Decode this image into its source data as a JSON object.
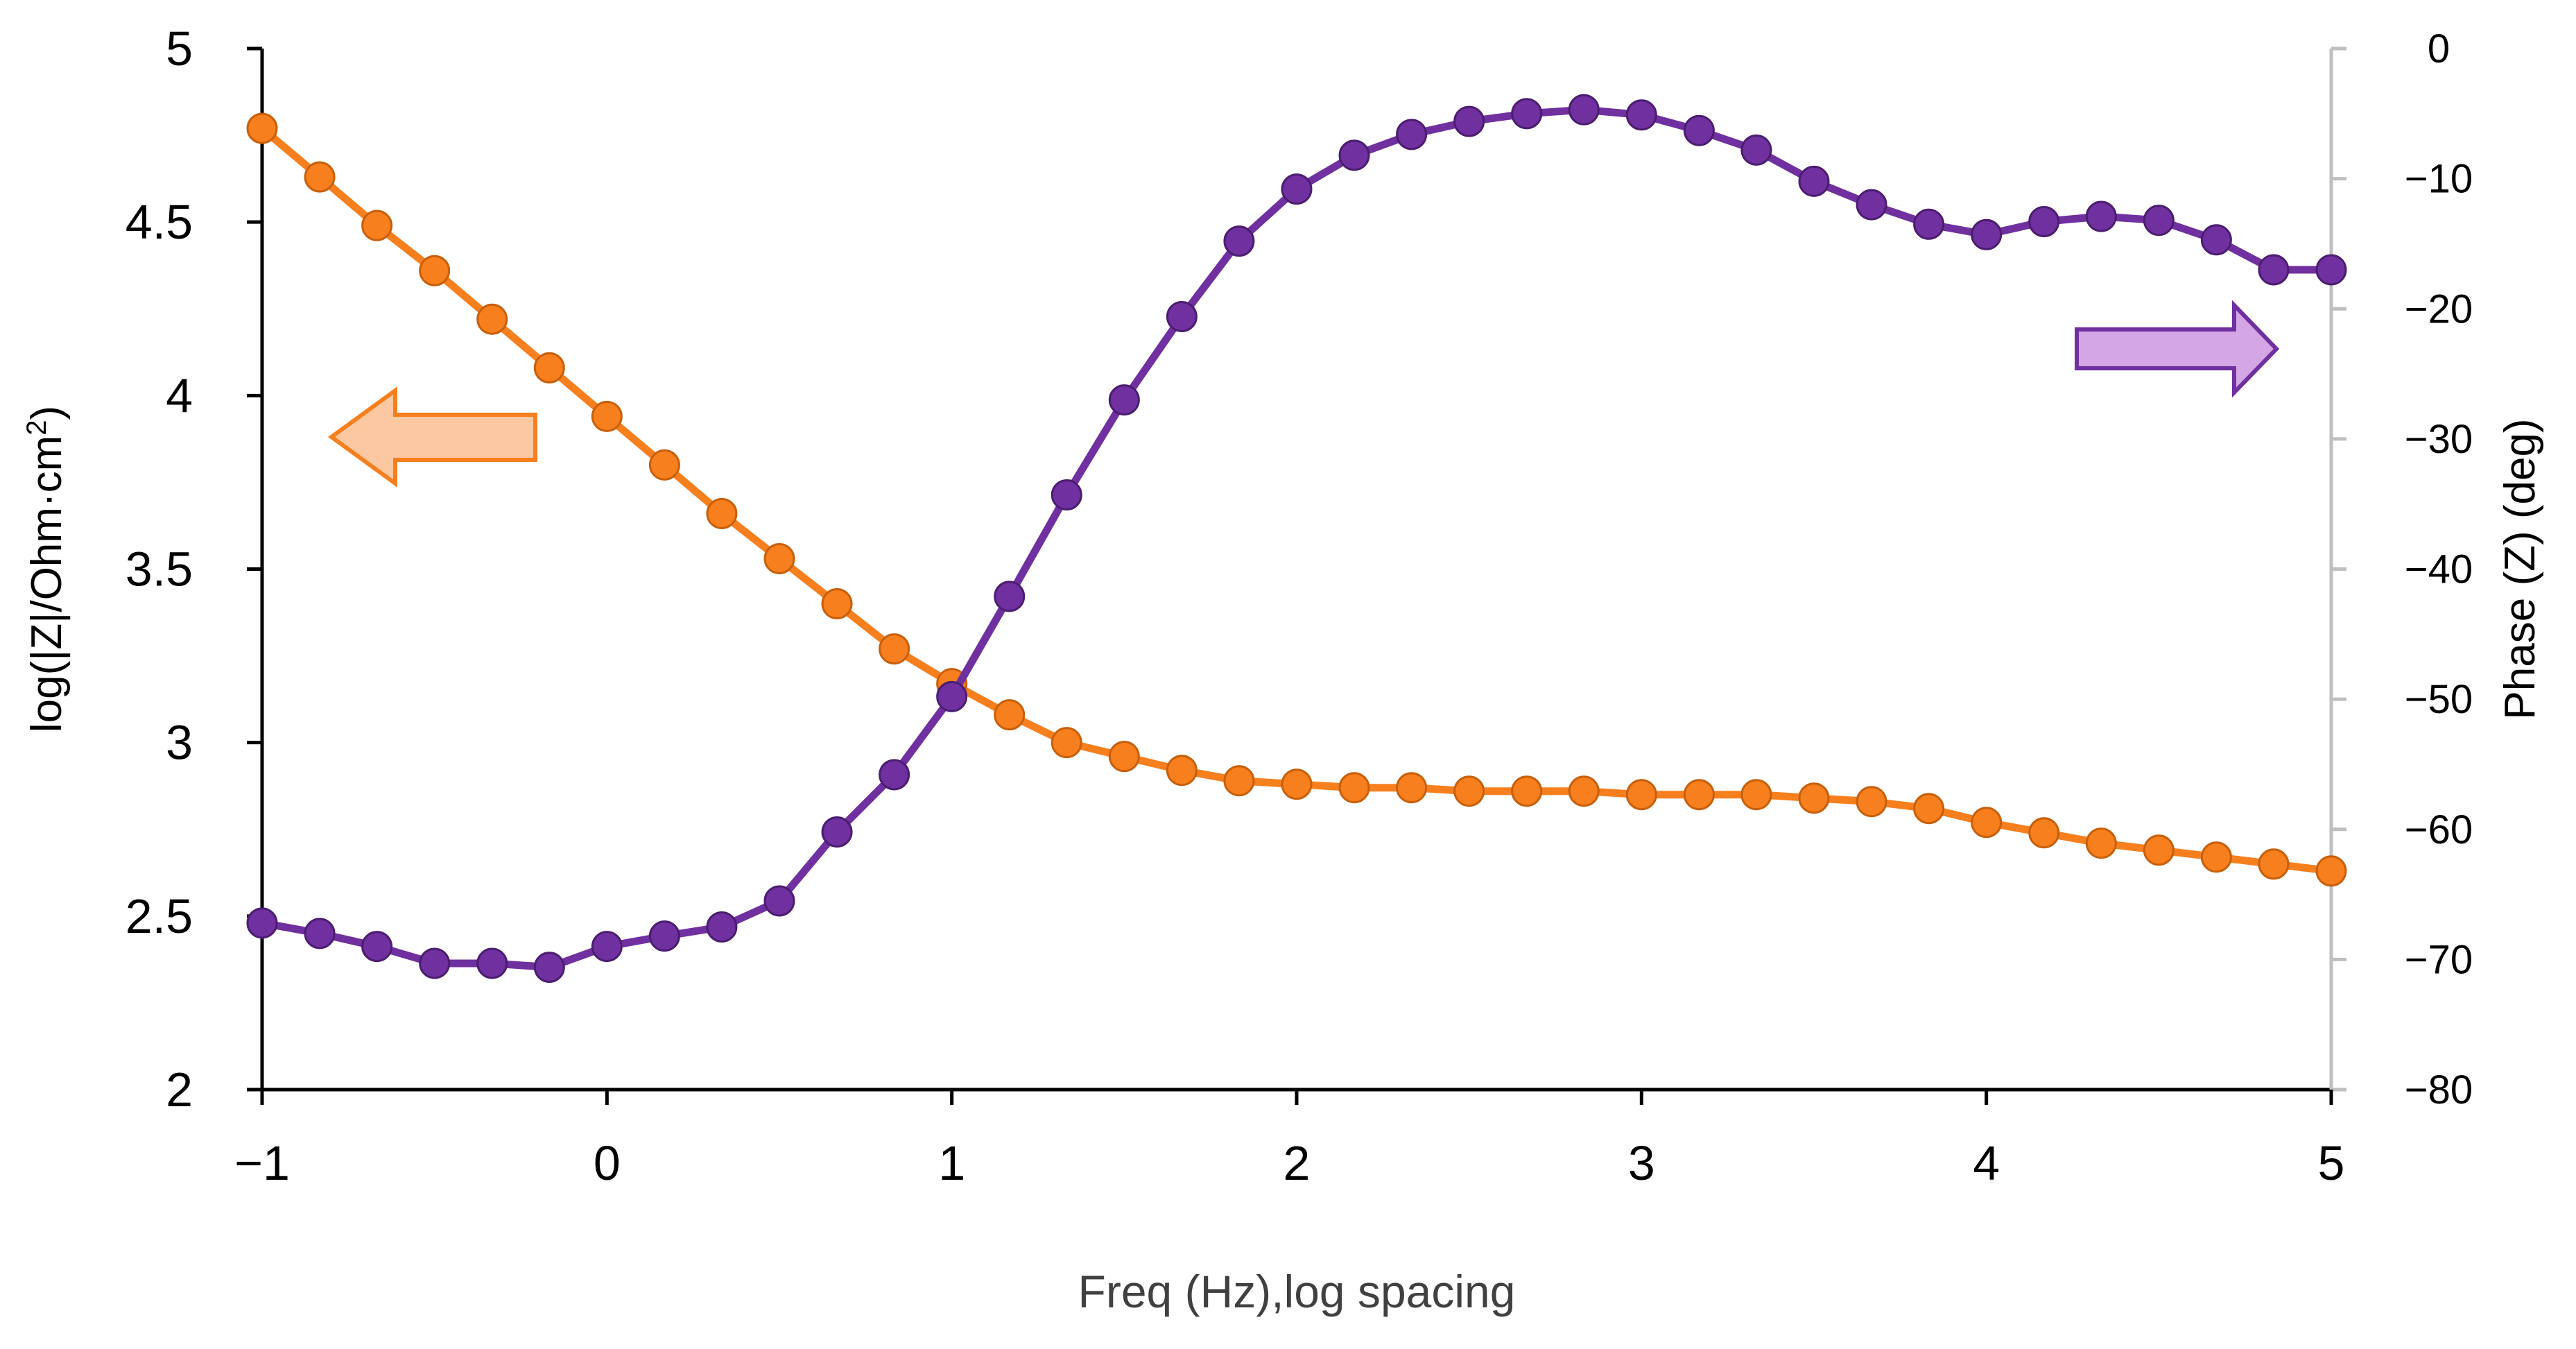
{
  "chart_data": {
    "type": "line",
    "title": "",
    "xlabel": "Freq (Hz),log spacing",
    "ylabel_left": "log(|Z|/Ohm·cm",
    "ylabel_left_superscript": "2",
    "ylabel_left_suffix": ")",
    "ylabel_right": "Phase (Z) (deg)",
    "xlim": [
      -1,
      5
    ],
    "ylim_left": [
      2,
      5
    ],
    "ylim_right": [
      -80,
      0
    ],
    "x_ticks": [
      -1,
      0,
      1,
      2,
      3,
      4,
      5
    ],
    "x_tick_labels": [
      "−1",
      "0",
      "1",
      "2",
      "3",
      "4",
      "5"
    ],
    "y_left_ticks": [
      2,
      2.5,
      3,
      3.5,
      4,
      4.5,
      5
    ],
    "y_left_tick_labels": [
      "2",
      "2.5",
      "3",
      "3.5",
      "4",
      "4.5",
      "5"
    ],
    "y_right_ticks": [
      -80,
      -70,
      -60,
      -50,
      -40,
      -30,
      -20,
      -10,
      0
    ],
    "y_right_tick_labels": [
      "−80",
      "−70",
      "−60",
      "−50",
      "−40",
      "−30",
      "−20",
      "−10",
      "0"
    ],
    "grid": false,
    "x": [
      -1.0,
      -0.833,
      -0.667,
      -0.5,
      -0.333,
      -0.167,
      0.0,
      0.167,
      0.333,
      0.5,
      0.667,
      0.833,
      1.0,
      1.167,
      1.333,
      1.5,
      1.667,
      1.833,
      2.0,
      2.167,
      2.333,
      2.5,
      2.667,
      2.833,
      3.0,
      3.167,
      3.333,
      3.5,
      3.667,
      3.833,
      4.0,
      4.167,
      4.333,
      4.5,
      4.667,
      4.833,
      5.0
    ],
    "series": [
      {
        "name": "log|Z|",
        "axis": "left",
        "color": "#F77F1E",
        "arrow_direction": "left",
        "values": [
          4.77,
          4.63,
          4.49,
          4.36,
          4.22,
          4.08,
          3.94,
          3.8,
          3.66,
          3.53,
          3.4,
          3.27,
          3.17,
          3.08,
          3.0,
          2.96,
          2.92,
          2.89,
          2.88,
          2.87,
          2.87,
          2.86,
          2.86,
          2.86,
          2.85,
          2.85,
          2.85,
          2.84,
          2.83,
          2.81,
          2.77,
          2.74,
          2.71,
          2.69,
          2.67,
          2.65,
          2.63
        ]
      },
      {
        "name": "Phase",
        "axis": "right",
        "color": "#7030A0",
        "arrow_direction": "right",
        "values": [
          -67.2,
          -68.0,
          -69.0,
          -70.3,
          -70.3,
          -70.6,
          -69.0,
          -68.2,
          -67.5,
          -65.5,
          -60.2,
          -55.8,
          -49.8,
          -42.1,
          -34.3,
          -27.0,
          -20.6,
          -14.8,
          -10.8,
          -8.2,
          -6.6,
          -5.6,
          -5.0,
          -4.7,
          -5.1,
          -6.3,
          -7.8,
          -10.2,
          -12.0,
          -13.5,
          -14.3,
          -13.3,
          -12.9,
          -13.2,
          -14.7,
          -17.0,
          -17.0
        ]
      }
    ]
  }
}
